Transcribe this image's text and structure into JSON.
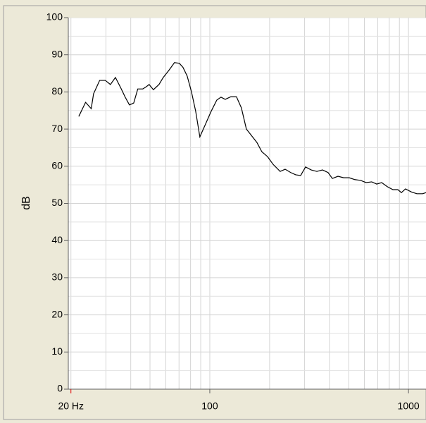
{
  "chart_data": {
    "type": "line",
    "ylabel": "dB",
    "x": [
      21.9,
      23.7,
      25.3,
      26.0,
      27.9,
      29.8,
      31.6,
      33.5,
      35.7,
      37.5,
      39.4,
      41.4,
      43.4,
      46.0,
      47.9,
      49.5,
      52.0,
      55.5,
      58.3,
      62.2,
      66.4,
      70.3,
      73.3,
      76.9,
      80.8,
      84.9,
      89.1,
      95.1,
      101.6,
      108.4,
      113.8,
      119.6,
      127.6,
      136.2,
      144.2,
      152.8,
      163.0,
      172.6,
      182.8,
      195.1,
      208.3,
      226.0,
      239.4,
      255.5,
      270.6,
      286.5,
      303.4,
      323.9,
      345.8,
      369.1,
      393.8,
      413.8,
      441.7,
      471.5,
      503.2,
      537.1,
      573.4,
      612,
      653,
      692,
      733,
      782,
      835,
      884,
      921,
      966,
      1032,
      1102,
      1178,
      1225
    ],
    "values": [
      73.4,
      77.2,
      75.5,
      79.5,
      83.1,
      83.1,
      82.0,
      83.9,
      81.0,
      78.6,
      76.5,
      77.0,
      80.8,
      80.8,
      81.4,
      82.0,
      80.6,
      82.0,
      83.9,
      85.8,
      87.9,
      87.7,
      86.6,
      84.3,
      80.1,
      74.8,
      67.9,
      71.3,
      74.8,
      77.8,
      78.6,
      78.0,
      78.7,
      78.7,
      75.7,
      70.0,
      68.1,
      66.4,
      63.9,
      62.6,
      60.5,
      58.6,
      59.2,
      58.3,
      57.7,
      57.5,
      59.8,
      59.0,
      58.6,
      59.0,
      58.3,
      56.7,
      57.3,
      56.9,
      56.9,
      56.4,
      56.2,
      55.6,
      55.8,
      55.2,
      55.6,
      54.5,
      53.7,
      53.7,
      52.9,
      53.9,
      53.1,
      52.6,
      52.6,
      52.9
    ],
    "color": "#000000",
    "xscale": "log",
    "xlim": [
      19.4,
      1225
    ],
    "ylim": [
      0,
      100
    ],
    "xticks": [
      {
        "value": 20,
        "label": "20 Hz"
      },
      100,
      1000
    ],
    "yticks": [
      0,
      10,
      20,
      30,
      40,
      50,
      60,
      70,
      80,
      90,
      100
    ],
    "xgrid": [
      20,
      30,
      40,
      50,
      60,
      70,
      80,
      90,
      100,
      200,
      300,
      400,
      500,
      600,
      700,
      800,
      900,
      1000
    ],
    "grid": true
  }
}
